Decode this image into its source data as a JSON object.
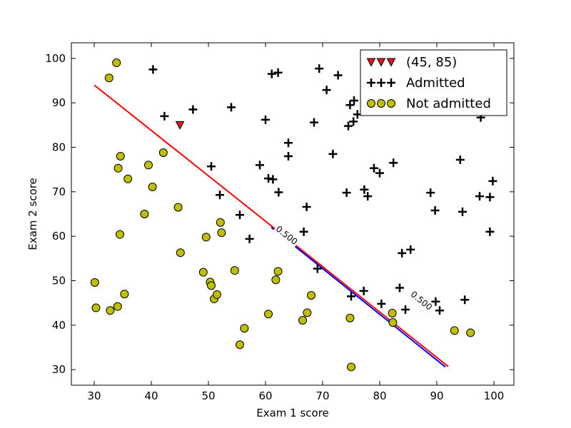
{
  "chart_data": {
    "type": "scatter",
    "title": "",
    "xlabel": "Exam 1 score",
    "ylabel": "Exam 2 score",
    "xlim": [
      26,
      103.5
    ],
    "ylim": [
      26.5,
      103.5
    ],
    "xticks": [
      "30",
      "40",
      "50",
      "60",
      "70",
      "80",
      "90",
      "100"
    ],
    "yticks": [
      "30",
      "40",
      "50",
      "60",
      "70",
      "80",
      "90",
      "100"
    ],
    "grid": false,
    "legend_position": "top-right",
    "series": [
      {
        "name": "(45, 85)",
        "marker": "triangle-down",
        "color": "#e8131b",
        "points": [
          [
            45,
            85
          ]
        ]
      },
      {
        "name": "Admitted",
        "marker": "plus",
        "color": "#000000",
        "points": [
          [
            40.3,
            97.5
          ],
          [
            42.3,
            87.0
          ],
          [
            47.3,
            88.5
          ],
          [
            54.0,
            89.0
          ],
          [
            50.5,
            75.7
          ],
          [
            52.0,
            69.3
          ],
          [
            55.5,
            64.8
          ],
          [
            57.2,
            59.4
          ],
          [
            59.0,
            76.0
          ],
          [
            60.0,
            86.2
          ],
          [
            60.5,
            73.0
          ],
          [
            61.1,
            96.5
          ],
          [
            61.3,
            72.8
          ],
          [
            62.2,
            96.8
          ],
          [
            62.3,
            69.9
          ],
          [
            64.0,
            81.0
          ],
          [
            64.0,
            78.0
          ],
          [
            66.7,
            61.0
          ],
          [
            67.2,
            66.6
          ],
          [
            68.5,
            85.6
          ],
          [
            69.1,
            52.7
          ],
          [
            69.4,
            97.7
          ],
          [
            70.7,
            92.9
          ],
          [
            71.8,
            78.5
          ],
          [
            72.7,
            96.2
          ],
          [
            74.2,
            69.8
          ],
          [
            74.5,
            84.8
          ],
          [
            74.8,
            89.5
          ],
          [
            75.0,
            46.5
          ],
          [
            75.4,
            85.8
          ],
          [
            75.5,
            90.5
          ],
          [
            76.1,
            87.4
          ],
          [
            77.2,
            47.7
          ],
          [
            77.3,
            70.5
          ],
          [
            77.9,
            69.0
          ],
          [
            79.0,
            75.3
          ],
          [
            80.0,
            74.2
          ],
          [
            80.3,
            44.8
          ],
          [
            82.2,
            93.8
          ],
          [
            82.4,
            76.5
          ],
          [
            83.5,
            48.4
          ],
          [
            83.9,
            56.2
          ],
          [
            84.5,
            43.5
          ],
          [
            85.4,
            57.0
          ],
          [
            88.9,
            69.8
          ],
          [
            89.7,
            65.8
          ],
          [
            89.8,
            45.3
          ],
          [
            90.5,
            43.3
          ],
          [
            94.1,
            77.2
          ],
          [
            94.5,
            65.5
          ],
          [
            94.9,
            45.7
          ],
          [
            97.5,
            69.0
          ],
          [
            97.7,
            86.7
          ],
          [
            99.3,
            68.8
          ],
          [
            99.3,
            61.0
          ],
          [
            99.8,
            72.4
          ]
        ]
      },
      {
        "name": "Not admitted",
        "marker": "circle",
        "color": "#bfbf00",
        "points": [
          [
            30.1,
            49.6
          ],
          [
            30.3,
            43.9
          ],
          [
            32.6,
            95.6
          ],
          [
            32.8,
            43.3
          ],
          [
            33.9,
            99.0
          ],
          [
            34.1,
            44.2
          ],
          [
            34.2,
            75.3
          ],
          [
            34.5,
            60.4
          ],
          [
            34.6,
            78.0
          ],
          [
            35.3,
            47.0
          ],
          [
            35.9,
            72.9
          ],
          [
            38.8,
            65.0
          ],
          [
            39.5,
            76.0
          ],
          [
            40.2,
            71.1
          ],
          [
            42.1,
            78.8
          ],
          [
            44.7,
            66.5
          ],
          [
            45.1,
            56.3
          ],
          [
            49.1,
            51.9
          ],
          [
            49.6,
            59.8
          ],
          [
            50.3,
            49.7
          ],
          [
            50.5,
            48.9
          ],
          [
            51.0,
            45.9
          ],
          [
            51.5,
            46.9
          ],
          [
            52.1,
            63.1
          ],
          [
            52.3,
            60.8
          ],
          [
            54.6,
            52.3
          ],
          [
            55.5,
            35.6
          ],
          [
            56.3,
            39.3
          ],
          [
            60.5,
            42.5
          ],
          [
            61.8,
            50.2
          ],
          [
            62.2,
            52.1
          ],
          [
            66.5,
            41.1
          ],
          [
            67.3,
            42.8
          ],
          [
            68.0,
            46.7
          ],
          [
            74.8,
            41.6
          ],
          [
            75.0,
            30.6
          ],
          [
            82.2,
            42.7
          ],
          [
            82.3,
            40.6
          ],
          [
            93.1,
            38.8
          ],
          [
            95.9,
            38.3
          ]
        ]
      }
    ],
    "decision_boundaries": [
      {
        "color": "#ff0000",
        "points": [
          [
            30.0,
            94.0
          ],
          [
            92.0,
            30.7
          ]
        ],
        "contour_label": "0.500",
        "label_at": [
          63.7,
          60.2
        ]
      },
      {
        "color": "#0000ff",
        "points": [
          [
            61.0,
            62.0
          ],
          [
            91.5,
            30.6
          ]
        ],
        "contour_label": "0.500",
        "label_at": [
          87.3,
          45.5
        ]
      }
    ]
  }
}
